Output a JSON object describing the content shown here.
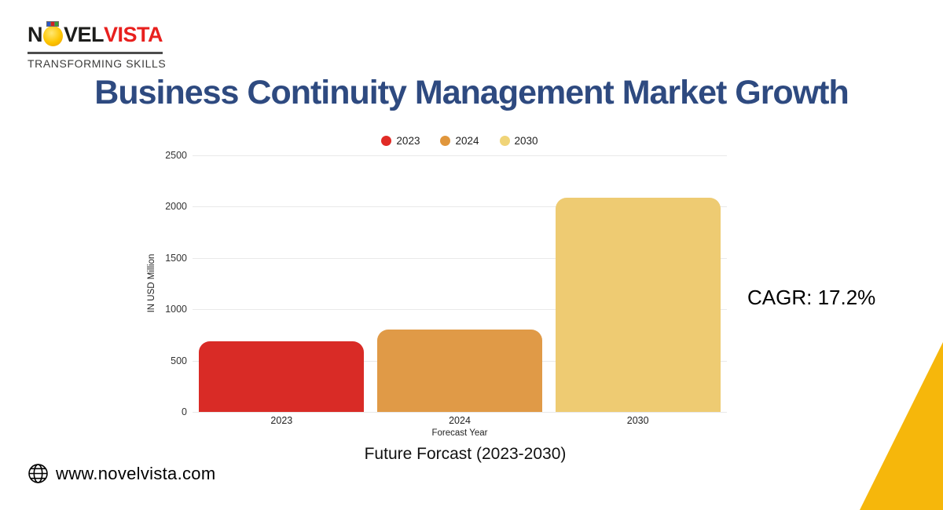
{
  "brand": {
    "name_dark_1": "N",
    "name_dark_2": "VEL",
    "name_red": "VISTA",
    "tagline": "TRANSFORMING SKILLS"
  },
  "title": "Business Continuity Management Market Growth",
  "cagr_label": "CAGR: 17.2%",
  "footer": {
    "website": "www.novelvista.com",
    "icon": "globe-icon"
  },
  "theme": {
    "title_color": "#2e4a80",
    "logo_dark": "#1d1d1b",
    "logo_red": "#e8201e",
    "triangle_yellow": "#f6b70b",
    "grid_color": "#e9e9e9"
  },
  "chart_data": {
    "type": "bar",
    "title": "Future Forcast (2023-2030)",
    "xlabel": "Forecast Year",
    "ylabel": "IN USD Million",
    "categories": [
      "2023",
      "2024",
      "2030"
    ],
    "values": [
      690,
      800,
      2090
    ],
    "series_colors": [
      "#d92b26",
      "#e09a47",
      "#eecb72"
    ],
    "legend": [
      {
        "label": "2023",
        "color": "#e12b26"
      },
      {
        "label": "2024",
        "color": "#e0963c"
      },
      {
        "label": "2030",
        "color": "#f0d478"
      }
    ],
    "legend_position": "top",
    "grid": true,
    "ylim": [
      0,
      2500
    ],
    "yticks": [
      0,
      500,
      1000,
      1500,
      2000,
      2500
    ]
  }
}
